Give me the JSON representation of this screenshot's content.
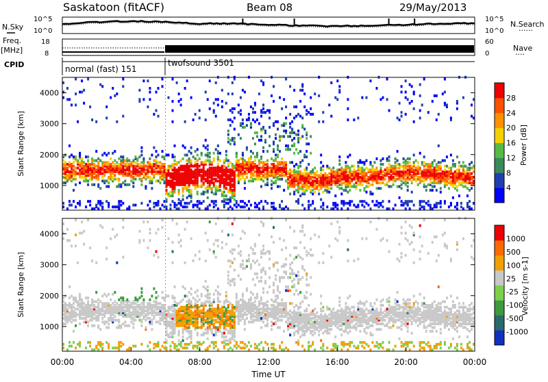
{
  "header": {
    "station": "Saskatoon (fitACF)",
    "beam": "Beam 08",
    "date": "29/May/2013"
  },
  "left_labels": {
    "nsky": "N.Sky",
    "freq_top": "Freq.",
    "freq_unit": "[MHz]",
    "cpid": "CPID"
  },
  "right_labels": {
    "nsearch": "N.Search",
    "nave": "Nave",
    "dots": "......",
    "dots_short": "...."
  },
  "cpid_segments": [
    {
      "label": "normal (fast) 151",
      "start_h": 0,
      "end_h": 6
    },
    {
      "label": "twofsound 3501",
      "start_h": 6,
      "end_h": 24
    }
  ],
  "chart_data": [
    {
      "type": "line",
      "name": "noise",
      "y_left_ticks": [
        "10^5",
        "10^0"
      ],
      "y_right_ticks": [
        "10^5",
        "10^0"
      ]
    },
    {
      "type": "line",
      "name": "freq-nave",
      "y_left_ticks": [
        "18",
        "8"
      ],
      "y_right_ticks": [
        "60",
        "0"
      ]
    },
    {
      "type": "heatmap",
      "name": "power",
      "ylabel": "Slant Range [km]",
      "ylim": [
        200,
        4500
      ],
      "yticks": [
        1000,
        2000,
        3000,
        4000
      ],
      "xlim": [
        0,
        24
      ],
      "colorbar_label": "Power [dB]",
      "colorbar_ticks": [
        "28",
        "24",
        "20",
        "16",
        "12",
        "8",
        "4"
      ]
    },
    {
      "type": "heatmap",
      "name": "velocity",
      "ylabel": "Slant Range [km]",
      "ylim": [
        200,
        4500
      ],
      "yticks": [
        1000,
        2000,
        3000,
        4000
      ],
      "xlim": [
        0,
        24
      ],
      "colorbar_label": "Velocity [m s-1]",
      "colorbar_ticks": [
        "1000",
        "500",
        "100",
        "25",
        "-25",
        "-100",
        "-500",
        "-1000"
      ]
    }
  ],
  "x_axis": {
    "ticks": [
      "00:00",
      "04:00",
      "08:00",
      "12:00",
      "16:00",
      "20:00",
      "00:00"
    ],
    "label": "Time UT"
  },
  "colors": {
    "power_scale": [
      "#0000ff",
      "#1f3fb0",
      "#3a8a5a",
      "#55bb44",
      "#f5d000",
      "#ff9000",
      "#ff5000",
      "#ee0000"
    ],
    "velocity_scale": [
      "#1030c0",
      "#2a6a6a",
      "#3d9a3d",
      "#7cd04a",
      "#c8c8c8",
      "#f0a000",
      "#ff6a00",
      "#ee0000"
    ]
  }
}
